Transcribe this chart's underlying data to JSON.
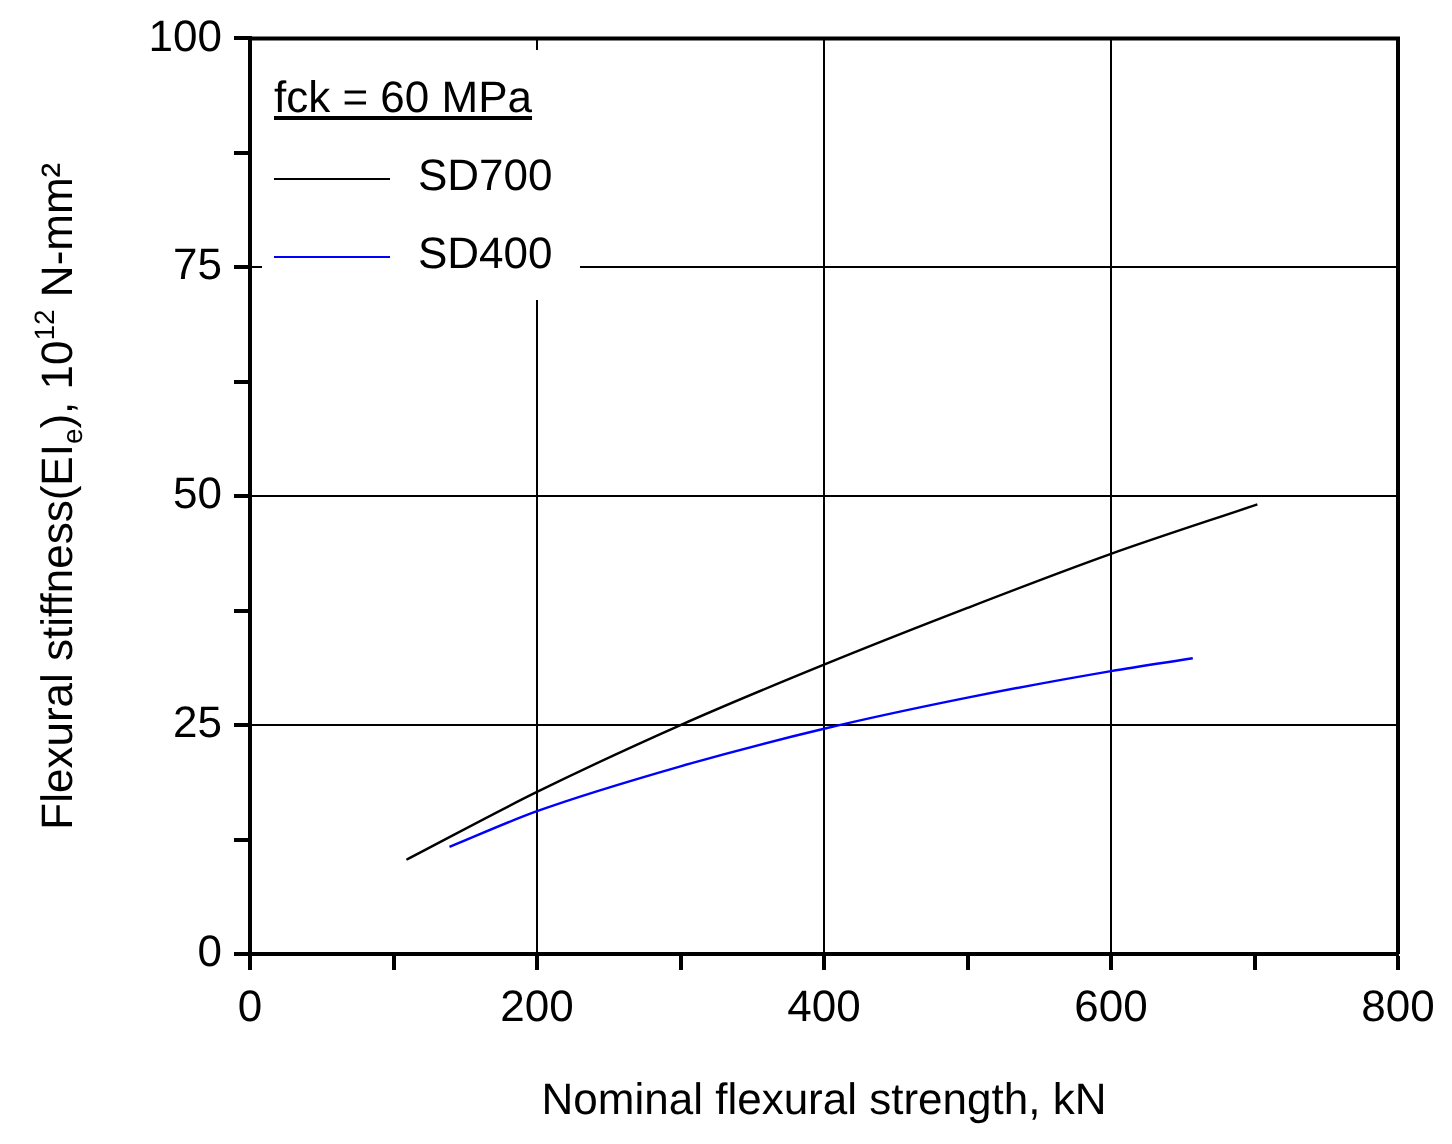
{
  "chart_data": {
    "type": "line",
    "xlabel": "Nominal flexural strength, kN",
    "ylabel": "Flexural stiffness(EI$_{e}$), 10$^{12}$ N-mm²",
    "legend_title": "fck = 60 MPa",
    "series": [
      {
        "name": "SD700",
        "color": "#000000",
        "x": [
          109,
          200,
          300,
          400,
          500,
          600,
          702
        ],
        "values": [
          10.3,
          17.7,
          25,
          31.6,
          37.8,
          43.7,
          49.1
        ]
      },
      {
        "name": "SD400",
        "color": "#0000ff",
        "x": [
          139,
          200,
          300,
          400,
          500,
          600,
          657
        ],
        "values": [
          11.7,
          15.6,
          20.5,
          24.6,
          28,
          30.9,
          32.3
        ]
      }
    ],
    "xlim": [
      0,
      800
    ],
    "xticks": [
      0,
      {
        "value": 100,
        "label": null
      },
      200,
      {
        "value": 300,
        "label": null
      },
      400,
      {
        "value": 500,
        "label": null
      },
      600,
      {
        "value": 700,
        "label": null
      },
      800
    ],
    "ylim": [
      0,
      100
    ],
    "yticks": [
      0,
      {
        "value": 12.5,
        "label": null
      },
      25,
      {
        "value": 37.5,
        "label": null
      },
      50,
      {
        "value": 62.5,
        "label": null
      },
      75,
      {
        "value": 87.5,
        "label": null
      },
      100
    ],
    "grid": true,
    "legend": "top left",
    "marker": "none",
    "line_style": "solid"
  }
}
